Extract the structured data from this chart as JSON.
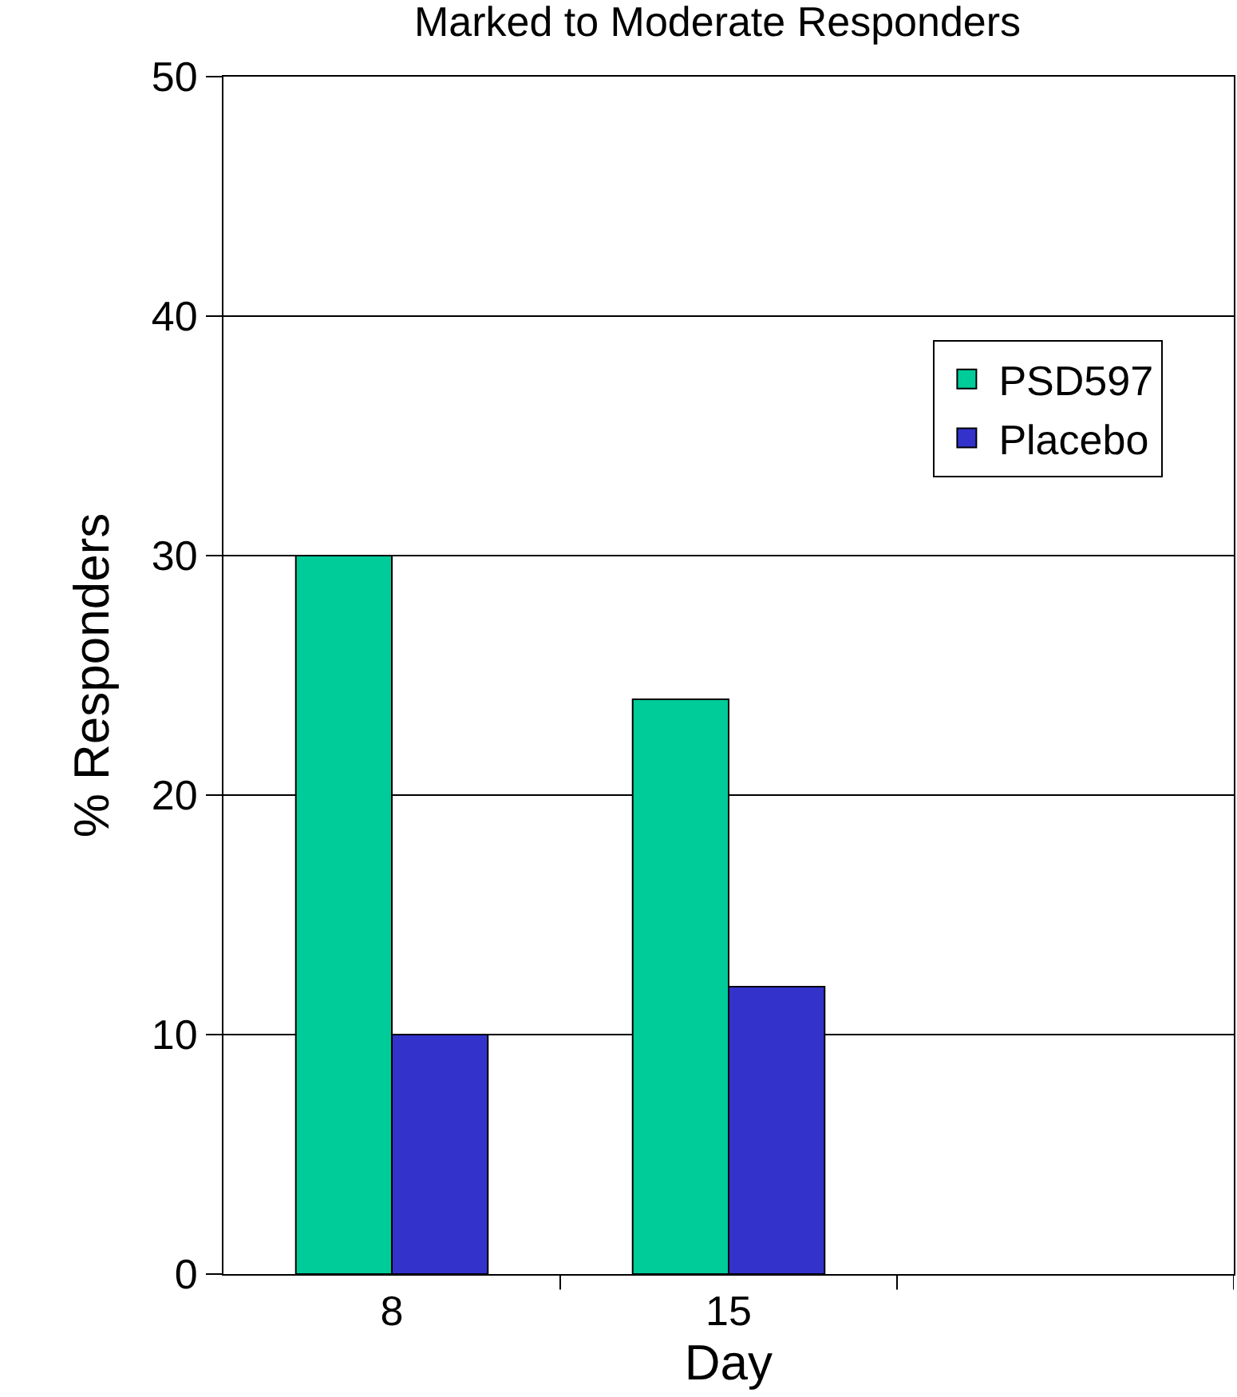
{
  "chart_data": {
    "type": "bar",
    "title": "Marked to Moderate Responders",
    "xlabel": "Day",
    "ylabel": "% Responders",
    "categories": [
      "8",
      "15",
      null
    ],
    "series": [
      {
        "name": "PSD597",
        "color": "#00cc99",
        "values": [
          30,
          24,
          null
        ]
      },
      {
        "name": "Placebo",
        "color": "#3333cc",
        "values": [
          10,
          12,
          null
        ]
      }
    ],
    "ylim": [
      0,
      50
    ],
    "yticks": [
      0,
      10,
      20,
      30,
      40,
      50
    ],
    "grid": "y",
    "legend": "top right"
  }
}
